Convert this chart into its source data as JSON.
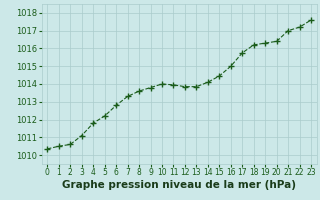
{
  "x": [
    0,
    1,
    2,
    3,
    4,
    5,
    6,
    7,
    8,
    9,
    10,
    11,
    12,
    13,
    14,
    15,
    16,
    17,
    18,
    19,
    20,
    21,
    22,
    23
  ],
  "y": [
    1010.35,
    1010.5,
    1010.6,
    1011.1,
    1011.8,
    1012.2,
    1012.8,
    1013.3,
    1013.6,
    1013.8,
    1014.0,
    1013.95,
    1013.85,
    1013.85,
    1014.1,
    1014.45,
    1015.0,
    1015.75,
    1016.2,
    1016.3,
    1016.4,
    1017.0,
    1017.2,
    1017.6
  ],
  "line_color": "#1a5c1a",
  "marker": "+",
  "marker_size": 4,
  "bg_color": "#cce8e8",
  "grid_color": "#aacccc",
  "xlabel": "Graphe pression niveau de la mer (hPa)",
  "xlabel_fontsize": 7.5,
  "ylim": [
    1009.5,
    1018.5
  ],
  "yticks": [
    1010,
    1011,
    1012,
    1013,
    1014,
    1015,
    1016,
    1017,
    1018
  ],
  "xticks": [
    0,
    1,
    2,
    3,
    4,
    5,
    6,
    7,
    8,
    9,
    10,
    11,
    12,
    13,
    14,
    15,
    16,
    17,
    18,
    19,
    20,
    21,
    22,
    23
  ],
  "tick_fontsize": 6,
  "line_width": 0.8,
  "axis_color": "#1a5c1a",
  "xlim": [
    -0.5,
    23.5
  ]
}
